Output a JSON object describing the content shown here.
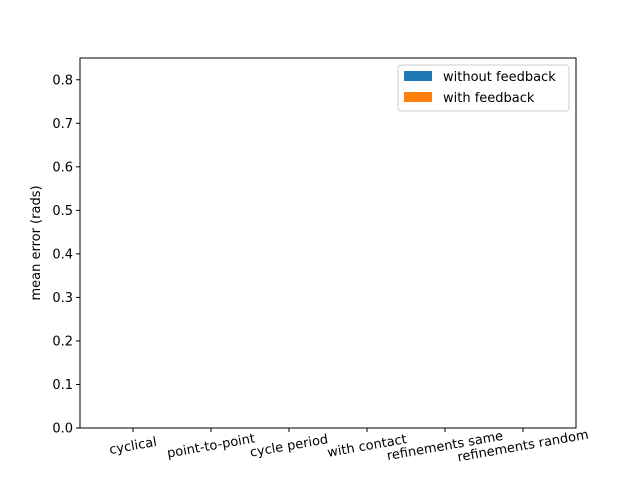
{
  "chart_data": {
    "type": "bar",
    "categories": [
      "cyclical",
      "point-to-point",
      "cycle period",
      "with contact",
      "refinements same",
      "refinements random"
    ],
    "series": [
      {
        "name": "without feedback",
        "values": [
          0,
          0,
          0,
          0,
          0,
          0
        ],
        "color": "#1f77b4"
      },
      {
        "name": "with feedback",
        "values": [
          0,
          0,
          0,
          0,
          0,
          0
        ],
        "color": "#ff7f0e"
      }
    ],
    "title": "",
    "xlabel": "",
    "ylabel": "mean error (rads)",
    "ylim": [
      0,
      0.85
    ],
    "yticks": [
      "0.0",
      "0.1",
      "0.2",
      "0.3",
      "0.4",
      "0.5",
      "0.6",
      "0.7",
      "0.8"
    ],
    "xtick_rotation_deg": -10,
    "grid": false,
    "legend_position": "top-right"
  }
}
